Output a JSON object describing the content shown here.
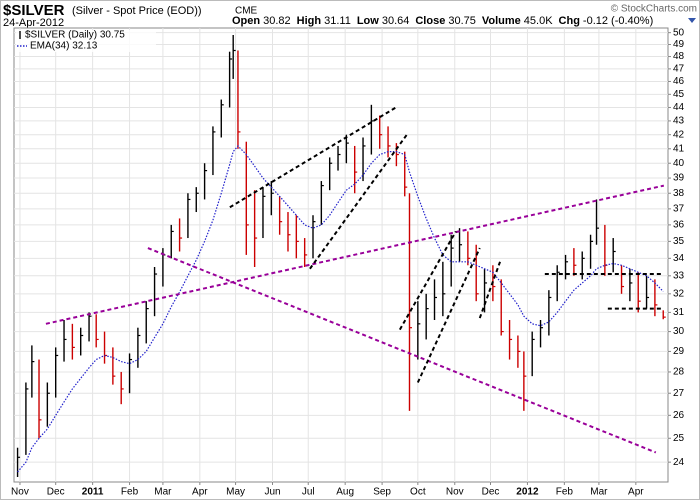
{
  "chart_data": {
    "type": "ohlc",
    "title": "$SILVER",
    "subtitle": "(Silver - Spot Price (EOD))",
    "exchange": "CME",
    "date": "24-Apr-2012",
    "watermark": "© StockCharts.com",
    "quote": [
      {
        "label": "Open",
        "value": "30.82"
      },
      {
        "label": "High",
        "value": "31.11"
      },
      {
        "label": "Low",
        "value": "30.64"
      },
      {
        "label": "Close",
        "value": "30.75"
      },
      {
        "label": "Volume",
        "value": "45.0K"
      },
      {
        "label": "Chg",
        "value": "-0.12 (-0.40%)"
      }
    ],
    "log_scale": true,
    "grid": true,
    "up_color": "#000000",
    "down_color": "#cc0000",
    "xlim": [
      -5,
      544
    ],
    "ylim": [
      23.2,
      50.4
    ],
    "xticks": [
      {
        "value": 0,
        "label": "Nov"
      },
      {
        "value": 30,
        "label": "Dec"
      },
      {
        "value": 61,
        "label": "2011"
      },
      {
        "value": 92,
        "label": "Feb"
      },
      {
        "value": 120,
        "label": "Mar"
      },
      {
        "value": 151,
        "label": "Apr"
      },
      {
        "value": 181,
        "label": "May"
      },
      {
        "value": 212,
        "label": "Jun"
      },
      {
        "value": 242,
        "label": "Jul"
      },
      {
        "value": 273,
        "label": "Aug"
      },
      {
        "value": 304,
        "label": "Sep"
      },
      {
        "value": 334,
        "label": "Oct"
      },
      {
        "value": 365,
        "label": "Nov"
      },
      {
        "value": 395,
        "label": "Dec"
      },
      {
        "value": 426,
        "label": "2012"
      },
      {
        "value": 457,
        "label": "Feb"
      },
      {
        "value": 486,
        "label": "Mar"
      },
      {
        "value": 517,
        "label": "Apr"
      }
    ],
    "yticks": [
      24,
      25,
      26,
      27,
      28,
      29,
      30,
      31,
      32,
      33,
      34,
      35,
      36,
      37,
      38,
      39,
      40,
      41,
      42,
      43,
      44,
      45,
      46,
      47,
      48,
      49,
      50
    ],
    "x": [
      -2,
      5,
      10,
      16,
      23,
      30,
      37,
      44,
      51,
      58,
      64,
      71,
      78,
      85,
      92,
      99,
      106,
      113,
      120,
      127,
      134,
      141,
      148,
      155,
      162,
      169,
      176,
      179,
      183,
      190,
      197,
      204,
      211,
      218,
      225,
      232,
      239,
      246,
      253,
      260,
      267,
      274,
      281,
      288,
      295,
      302,
      309,
      316,
      323,
      327,
      334,
      341,
      348,
      355,
      362,
      369,
      376,
      383,
      390,
      397,
      404,
      411,
      418,
      423,
      430,
      437,
      444,
      451,
      458,
      465,
      472,
      479,
      484,
      491,
      498,
      505,
      512,
      519,
      526,
      533,
      540
    ],
    "series": [
      {
        "name": "$SILVER (Daily) 30.75",
        "high": [
          24.6,
          27.5,
          29.3,
          28.6,
          27.5,
          29.2,
          30.6,
          30.4,
          30.2,
          31.0,
          30.9,
          30.0,
          29.2,
          28.0,
          28.9,
          30.2,
          31.6,
          33.5,
          34.6,
          36.0,
          36.4,
          38.0,
          38.4,
          40.0,
          42.6,
          44.6,
          48.4,
          49.8,
          48.5,
          41.5,
          38.2,
          38.4,
          38.8,
          37.8,
          36.8,
          36.6,
          35.2,
          36.6,
          38.8,
          40.4,
          41.2,
          42.0,
          41.2,
          41.8,
          44.2,
          43.4,
          42.6,
          41.4,
          40.8,
          38.0,
          31.6,
          32.0,
          32.8,
          33.8,
          35.4,
          35.8,
          35.6,
          34.8,
          33.4,
          33.6,
          32.8,
          30.6,
          29.8,
          29.0,
          30.0,
          30.6,
          32.2,
          33.6,
          34.2,
          34.6,
          34.4,
          35.4,
          37.6,
          36.0,
          35.2,
          33.6,
          33.4,
          33.2,
          33.0,
          32.8,
          31.11
        ],
        "low": [
          23.4,
          24.3,
          26.8,
          25.0,
          25.5,
          26.8,
          28.5,
          28.6,
          28.8,
          29.5,
          29.2,
          28.4,
          27.4,
          26.5,
          27.0,
          28.2,
          29.4,
          30.8,
          32.4,
          34.0,
          34.4,
          35.2,
          36.8,
          37.6,
          39.2,
          41.8,
          44.0,
          46.2,
          41.0,
          34.2,
          33.5,
          35.2,
          36.6,
          35.4,
          34.4,
          34.0,
          33.5,
          34.0,
          36.0,
          38.2,
          39.5,
          40.0,
          38.0,
          38.8,
          40.6,
          41.0,
          40.4,
          39.8,
          37.8,
          26.2,
          28.6,
          29.6,
          30.6,
          30.8,
          32.4,
          33.8,
          33.6,
          31.6,
          31.0,
          31.6,
          29.8,
          28.6,
          28.2,
          26.2,
          27.8,
          29.2,
          29.8,
          31.6,
          32.8,
          33.0,
          32.8,
          33.4,
          34.8,
          33.0,
          33.2,
          32.0,
          31.6,
          31.0,
          31.2,
          30.8,
          30.64
        ],
        "close": [
          24.2,
          27.2,
          28.5,
          25.8,
          27.0,
          28.8,
          29.6,
          29.2,
          29.8,
          30.8,
          29.6,
          28.8,
          27.8,
          27.2,
          28.6,
          29.8,
          31.2,
          33.1,
          34.2,
          35.6,
          35.2,
          37.6,
          38.0,
          39.5,
          42.2,
          44.2,
          47.8,
          48.5,
          42.2,
          36.0,
          35.2,
          37.8,
          38.0,
          36.2,
          35.4,
          35.0,
          34.2,
          36.2,
          38.5,
          40.0,
          40.6,
          41.4,
          39.4,
          41.2,
          43.0,
          42.0,
          41.2,
          40.6,
          38.4,
          30.2,
          30.4,
          31.2,
          31.8,
          32.0,
          34.6,
          34.8,
          34.0,
          32.0,
          32.6,
          32.4,
          30.0,
          29.6,
          29.0,
          27.8,
          29.6,
          30.2,
          31.8,
          33.2,
          33.8,
          33.6,
          34.0,
          35.0,
          35.8,
          33.6,
          34.4,
          32.4,
          32.6,
          31.6,
          31.8,
          31.4,
          30.75
        ]
      },
      {
        "name": "EMA(34) 32.13",
        "color": "#2222cc",
        "values": [
          23.6,
          24.0,
          24.6,
          25.0,
          25.4,
          26.0,
          26.6,
          27.2,
          27.7,
          28.2,
          28.6,
          28.8,
          28.7,
          28.5,
          28.4,
          28.6,
          29.0,
          29.7,
          30.4,
          31.3,
          32.1,
          33.0,
          33.9,
          35.0,
          36.3,
          38.0,
          39.9,
          40.8,
          41.2,
          40.6,
          39.8,
          39.0,
          38.4,
          37.8,
          37.2,
          36.6,
          36.0,
          35.8,
          36.0,
          36.6,
          37.4,
          38.2,
          38.6,
          39.2,
          40.0,
          40.6,
          40.8,
          40.8,
          40.6,
          39.4,
          37.8,
          36.4,
          35.2,
          34.2,
          33.8,
          33.8,
          33.8,
          33.6,
          33.4,
          33.2,
          32.6,
          32.0,
          31.4,
          30.8,
          30.4,
          30.3,
          30.5,
          31.0,
          31.6,
          32.2,
          32.6,
          33.0,
          33.4,
          33.6,
          33.7,
          33.6,
          33.4,
          33.2,
          33.0,
          32.6,
          32.13
        ]
      }
    ],
    "trendlines": [
      {
        "color": "#990099",
        "x": [
          21.8,
          540.5
        ],
        "y": [
          30.4,
          38.5
        ]
      },
      {
        "color": "#990099",
        "x": [
          107.4,
          533.8
        ],
        "y": [
          34.6,
          24.4
        ]
      },
      {
        "color": "#000000",
        "x": [
          176.2,
          315.6
        ],
        "y": [
          37.1,
          44.0
        ]
      },
      {
        "color": "#000000",
        "x": [
          243.4,
          325.6
        ],
        "y": [
          33.4,
          42.1
        ]
      },
      {
        "color": "#000000",
        "x": [
          318.9,
          365.9
        ],
        "y": [
          30.1,
          35.6
        ]
      },
      {
        "color": "#000000",
        "x": [
          334,
          386
        ],
        "y": [
          27.5,
          34.6
        ]
      },
      {
        "color": "#000000",
        "x": [
          386,
          403
        ],
        "y": [
          30.7,
          33.8
        ]
      },
      {
        "color": "#000000",
        "x": [
          440.6,
          540.5
        ],
        "y": [
          33.1,
          33.1
        ]
      },
      {
        "color": "#000000",
        "x": [
          493.5,
          540.5
        ],
        "y": [
          31.2,
          31.2
        ]
      }
    ]
  }
}
